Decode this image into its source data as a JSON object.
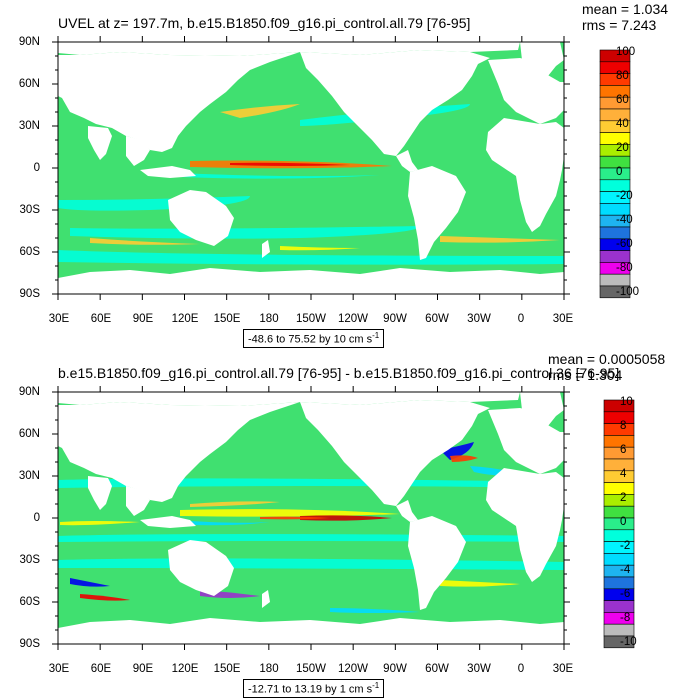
{
  "palette": [
    "#666666",
    "#bcbcbc",
    "#ee00ee",
    "#9a32cd",
    "#0000ee",
    "#1e74dd",
    "#1eb4f0",
    "#00dcff",
    "#00f5ff",
    "#00ffdc",
    "#2aee8a",
    "#40e040",
    "#aaee00",
    "#ffff00",
    "#ffcc33",
    "#ffb03a",
    "#ff9a33",
    "#ff7400",
    "#ff3a00",
    "#ee0000",
    "#cc0000"
  ],
  "colors": {
    "ocean_base": "#40e070",
    "land": "#ffffff"
  },
  "x_ticks": [
    "30E",
    "60E",
    "90E",
    "120E",
    "150E",
    "180",
    "150W",
    "120W",
    "90W",
    "60W",
    "30W",
    "0",
    "30E"
  ],
  "y_ticks": [
    "90N",
    "60N",
    "30N",
    "0",
    "30S",
    "60S",
    "90S"
  ],
  "panels": [
    {
      "title": "UVEL at z= 197.7m, b.e15.B1850.f09_g16.pi_control.all.79 [76-95]",
      "mean": "mean = 1.034",
      "rms": "rms = 7.243",
      "range": "-48.6 to 75.52 by 10 cm s",
      "range_sup": "-1",
      "colorbar_labels": [
        "100",
        "80",
        "60",
        "40",
        "20",
        "0",
        "-20",
        "-40",
        "-60",
        "-80",
        "-100"
      ]
    },
    {
      "title": "b.e15.B1850.f09_g16.pi_control.all.79 [76-95] - b.e15.B1850.f09_g16.pi_control.36 [76-95]",
      "mean": "mean = 0.0005058",
      "rms": "rms = 1.304",
      "range": "-12.71 to 13.19 by 1 cm s",
      "range_sup": "-1",
      "colorbar_labels": [
        "10",
        "8",
        "6",
        "4",
        "2",
        "0",
        "-2",
        "-4",
        "-6",
        "-8",
        "-10"
      ]
    }
  ]
}
